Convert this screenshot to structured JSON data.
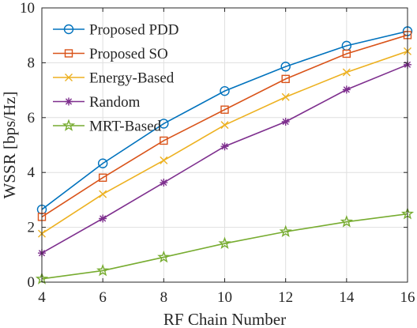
{
  "chart_data": {
    "type": "line",
    "title": "",
    "xlabel": "RF Chain Number",
    "ylabel": "WSSR [bps/Hz]",
    "x": [
      4,
      6,
      8,
      10,
      12,
      14,
      16
    ],
    "xlim": [
      4,
      16
    ],
    "ylim": [
      0,
      10
    ],
    "xticks": [
      "4",
      "6",
      "8",
      "10",
      "12",
      "14",
      "16"
    ],
    "yticks": [
      "0",
      "2",
      "4",
      "6",
      "8",
      "10"
    ],
    "grid": true,
    "legend_position": "top-left",
    "series": [
      {
        "name": "Proposed PDD",
        "values": [
          2.65,
          4.33,
          5.78,
          6.97,
          7.86,
          8.62,
          9.15
        ],
        "color": "#0072BD",
        "marker": "circle"
      },
      {
        "name": "Proposed SO",
        "values": [
          2.38,
          3.81,
          5.16,
          6.29,
          7.41,
          8.33,
          9.01
        ],
        "color": "#D95319",
        "marker": "square"
      },
      {
        "name": "Energy-Based",
        "values": [
          1.77,
          3.21,
          4.44,
          5.73,
          6.75,
          7.65,
          8.42
        ],
        "color": "#EDB120",
        "marker": "x"
      },
      {
        "name": "Random",
        "values": [
          1.06,
          2.32,
          3.63,
          4.95,
          5.85,
          7.02,
          7.93
        ],
        "color": "#7E2F8E",
        "marker": "asterisk"
      },
      {
        "name": "MRT-Based",
        "values": [
          0.12,
          0.42,
          0.91,
          1.41,
          1.84,
          2.2,
          2.49
        ],
        "color": "#77AC30",
        "marker": "star"
      }
    ]
  }
}
